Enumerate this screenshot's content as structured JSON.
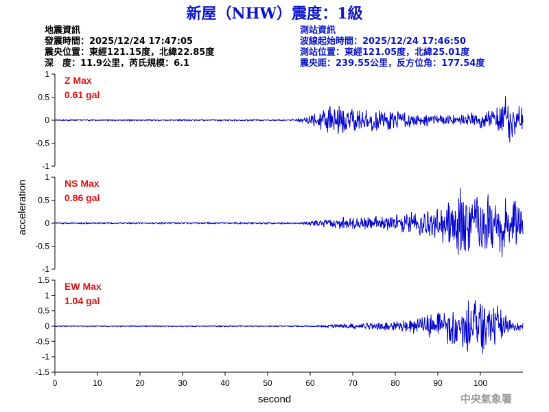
{
  "header": {
    "title": "新屋（NHW）震度：1級",
    "quake_info": {
      "heading": "地震資訊",
      "origin_time": "發震時間：2025/12/24 17:47:05",
      "epicenter": "震央位置：東經121.15度，北緯22.85度",
      "depth_magnitude": "深　度：11.9公里，芮氏規模：6.1"
    },
    "station_info": {
      "heading": "測站資訊",
      "wave_start": "波線起始時間：2025/12/24 17:46:50",
      "station_location": "測站位置：東經121.05度，北緯25.01度",
      "distance_azimuth": "震央距：239.55公里，反方位角：177.54度"
    }
  },
  "footer": {
    "agency": "中央氣象署"
  },
  "colors": {
    "title": "#0a14c8",
    "station_info": "#0a14c8",
    "trace": "#0000cc",
    "max_label": "#e01010",
    "footer": "#9a9a9a"
  },
  "chart_data": {
    "type": "line",
    "xlabel": "second",
    "ylabel": "acceleration",
    "xlim": [
      0,
      110
    ],
    "x_ticks": [
      0,
      10,
      20,
      30,
      40,
      50,
      60,
      70,
      80,
      90,
      100
    ],
    "panels": [
      {
        "component": "Z",
        "max_label": "Z Max",
        "max_value": "0.61 gal",
        "ylim": [
          -1,
          1
        ],
        "y_ticks": [
          "1",
          "0.5",
          "0",
          "-0.5",
          "-1"
        ],
        "envelope": [
          [
            0,
            0.015
          ],
          [
            55,
            0.015
          ],
          [
            58,
            0.05
          ],
          [
            60,
            0.1
          ],
          [
            62,
            0.2
          ],
          [
            64,
            0.3
          ],
          [
            66,
            0.35
          ],
          [
            68,
            0.3
          ],
          [
            72,
            0.25
          ],
          [
            76,
            0.25
          ],
          [
            80,
            0.2
          ],
          [
            86,
            0.15
          ],
          [
            92,
            0.12
          ],
          [
            96,
            0.15
          ],
          [
            100,
            0.2
          ],
          [
            104,
            0.3
          ],
          [
            106,
            0.6
          ],
          [
            108,
            0.4
          ],
          [
            110,
            0.3
          ]
        ]
      },
      {
        "component": "NS",
        "max_label": "NS Max",
        "max_value": "0.86 gal",
        "ylim": [
          -1,
          1
        ],
        "y_ticks": [
          "1",
          "0.5",
          "0",
          "-0.5",
          "-1"
        ],
        "envelope": [
          [
            0,
            0.015
          ],
          [
            58,
            0.02
          ],
          [
            60,
            0.05
          ],
          [
            64,
            0.1
          ],
          [
            68,
            0.15
          ],
          [
            74,
            0.15
          ],
          [
            80,
            0.2
          ],
          [
            84,
            0.25
          ],
          [
            88,
            0.3
          ],
          [
            92,
            0.5
          ],
          [
            94,
            0.7
          ],
          [
            96,
            0.8
          ],
          [
            100,
            0.6
          ],
          [
            104,
            0.7
          ],
          [
            106,
            0.8
          ],
          [
            108,
            0.6
          ],
          [
            110,
            0.5
          ]
        ]
      },
      {
        "component": "EW",
        "max_label": "EW Max",
        "max_value": "1.04 gal",
        "ylim": [
          -1.5,
          1.5
        ],
        "y_ticks": [
          "1.5",
          "1",
          "0.5",
          "0",
          "-0.5",
          "-1",
          "-1.5"
        ],
        "envelope": [
          [
            0,
            0.015
          ],
          [
            60,
            0.02
          ],
          [
            64,
            0.05
          ],
          [
            70,
            0.1
          ],
          [
            76,
            0.12
          ],
          [
            82,
            0.2
          ],
          [
            86,
            0.3
          ],
          [
            90,
            0.5
          ],
          [
            94,
            0.7
          ],
          [
            96,
            0.9
          ],
          [
            100,
            1.0
          ],
          [
            102,
            0.9
          ],
          [
            104,
            0.7
          ],
          [
            106,
            0.4
          ],
          [
            108,
            0.2
          ],
          [
            110,
            0.15
          ]
        ]
      }
    ]
  }
}
